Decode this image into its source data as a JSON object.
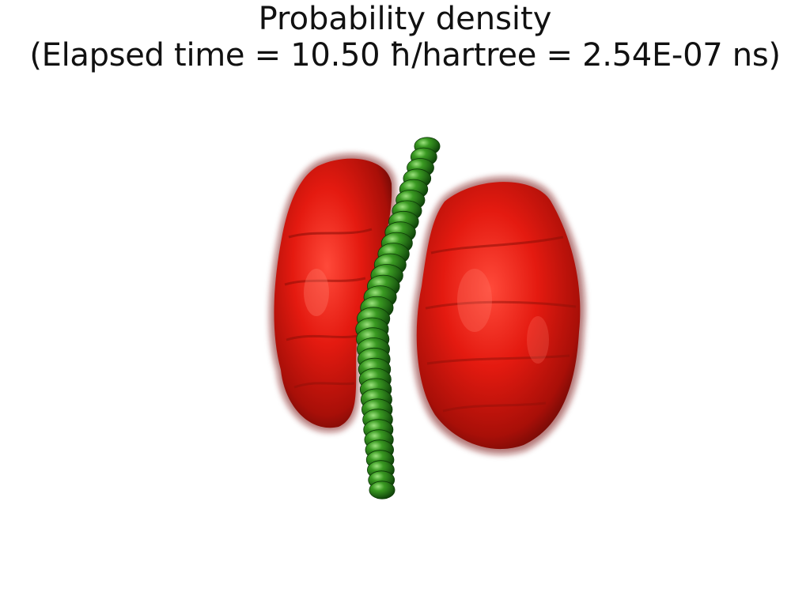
{
  "title": {
    "line1": "Probability density",
    "line2": "(Elapsed time = 10.50 ħ/hartree = 2.54E-07 ns)"
  },
  "colors": {
    "density_lobes": "#e41a10",
    "atom_chain": "#2e8b1f",
    "background": "#ffffff"
  },
  "chain": {
    "atom_count": 34
  }
}
